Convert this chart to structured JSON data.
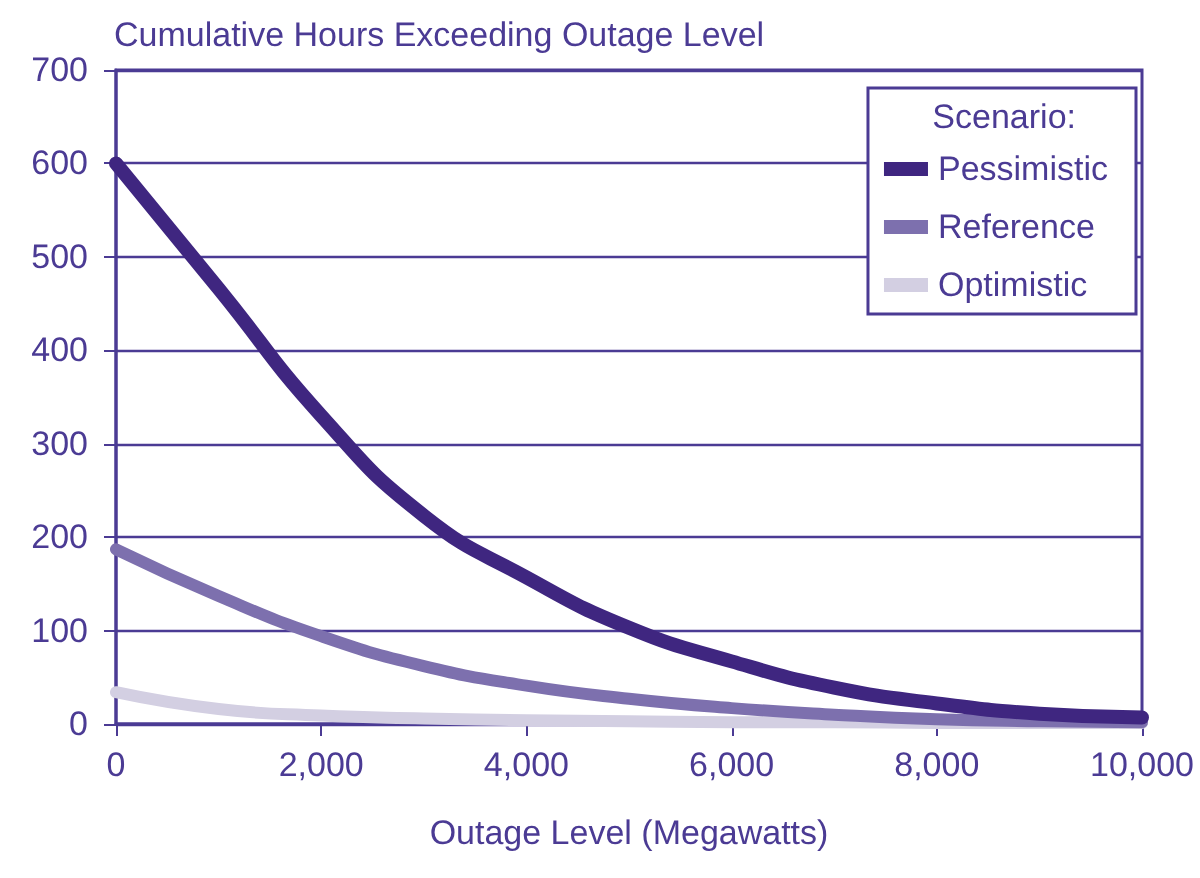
{
  "chart_data": {
    "type": "line",
    "title": "Cumulative Hours Exceeding Outage Level",
    "xlabel": "Outage Level (Megawatts)",
    "legend_title": "Scenario:",
    "legend": "top right",
    "grid": "y",
    "marker": "none",
    "line_style": "solid",
    "x": [
      0,
      1000,
      2000,
      3000,
      4000,
      5000,
      6000,
      7000,
      8000,
      9000,
      10000
    ],
    "xlim": [
      0,
      10000
    ],
    "xticks": [
      {
        "value": 0,
        "label": "0"
      },
      {
        "value": 2000,
        "label": "2,000"
      },
      {
        "value": 4000,
        "label": "4,000"
      },
      {
        "value": 6000,
        "label": "6,000"
      },
      {
        "value": 8000,
        "label": "8,000"
      },
      {
        "value": 10000,
        "label": "10,000"
      }
    ],
    "ylim": [
      0,
      700
    ],
    "yticks": [
      0,
      100,
      200,
      300,
      400,
      500,
      600,
      700
    ],
    "series": [
      {
        "name": "Pessimistic",
        "color": "#3f2680",
        "values": [
          600,
          466,
          330,
          223,
          157,
          103,
          67,
          39,
          22,
          11,
          7
        ]
      },
      {
        "name": "Reference",
        "color": "#7d70ae",
        "values": [
          187,
          137,
          94,
          62,
          41,
          27,
          17,
          10,
          5,
          3,
          2
        ]
      },
      {
        "name": "Optimistic",
        "color": "#d3cfe2",
        "values": [
          34,
          16,
          9,
          6,
          4,
          3,
          2,
          2,
          1,
          1,
          1
        ]
      }
    ]
  }
}
